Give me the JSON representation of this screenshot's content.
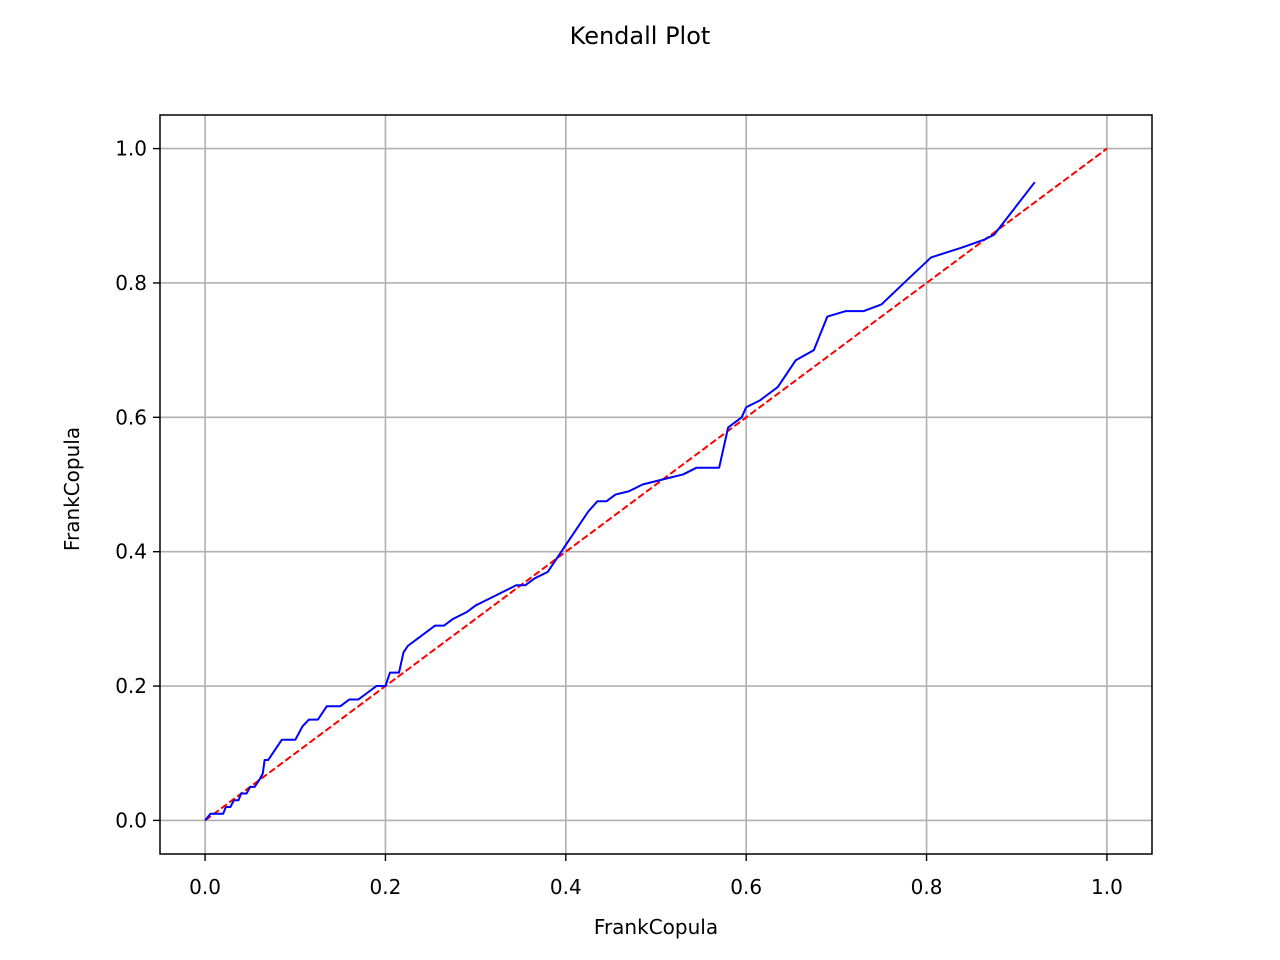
{
  "chart_data": {
    "type": "line",
    "title": "Kendall Plot",
    "xlabel": "FrankCopula",
    "ylabel": "FrankCopula",
    "xlim": [
      -0.05,
      1.05
    ],
    "ylim": [
      -0.05,
      1.05
    ],
    "grid": true,
    "x_ticks": [
      0.0,
      0.2,
      0.4,
      0.6,
      0.8,
      1.0
    ],
    "y_ticks": [
      0.0,
      0.2,
      0.4,
      0.6,
      0.8,
      1.0
    ],
    "x_tick_labels": [
      "0.0",
      "0.2",
      "0.4",
      "0.6",
      "0.8",
      "1.0"
    ],
    "y_tick_labels": [
      "0.0",
      "0.2",
      "0.4",
      "0.6",
      "0.8",
      "1.0"
    ],
    "series": [
      {
        "color": "#0000ff",
        "style": "solid",
        "x": [
          0.0,
          0.006,
          0.02,
          0.023,
          0.028,
          0.032,
          0.037,
          0.04,
          0.046,
          0.05,
          0.055,
          0.06,
          0.064,
          0.066,
          0.07,
          0.085,
          0.1,
          0.108,
          0.115,
          0.125,
          0.135,
          0.15,
          0.16,
          0.17,
          0.18,
          0.19,
          0.2,
          0.205,
          0.215,
          0.22,
          0.225,
          0.235,
          0.245,
          0.255,
          0.265,
          0.275,
          0.29,
          0.3,
          0.315,
          0.33,
          0.345,
          0.355,
          0.365,
          0.38,
          0.39,
          0.4,
          0.415,
          0.425,
          0.435,
          0.445,
          0.455,
          0.47,
          0.485,
          0.5,
          0.515,
          0.53,
          0.545,
          0.555,
          0.57,
          0.58,
          0.595,
          0.6,
          0.615,
          0.635,
          0.655,
          0.675,
          0.69,
          0.71,
          0.73,
          0.75,
          0.775,
          0.805,
          0.84,
          0.865,
          0.875,
          0.92
        ],
        "y": [
          0.0,
          0.01,
          0.01,
          0.02,
          0.02,
          0.03,
          0.03,
          0.04,
          0.04,
          0.05,
          0.05,
          0.06,
          0.07,
          0.09,
          0.09,
          0.12,
          0.12,
          0.14,
          0.15,
          0.15,
          0.17,
          0.17,
          0.18,
          0.18,
          0.19,
          0.2,
          0.2,
          0.22,
          0.22,
          0.25,
          0.26,
          0.27,
          0.28,
          0.29,
          0.29,
          0.3,
          0.31,
          0.32,
          0.33,
          0.34,
          0.35,
          0.35,
          0.36,
          0.37,
          0.39,
          0.41,
          0.44,
          0.46,
          0.475,
          0.475,
          0.485,
          0.49,
          0.5,
          0.505,
          0.51,
          0.515,
          0.525,
          0.525,
          0.525,
          0.585,
          0.6,
          0.615,
          0.625,
          0.645,
          0.685,
          0.7,
          0.75,
          0.758,
          0.758,
          0.768,
          0.8,
          0.838,
          0.853,
          0.865,
          0.872,
          0.95
        ]
      },
      {
        "color": "#ff0000",
        "style": "dashed",
        "x": [
          0.0,
          1.0
        ],
        "y": [
          0.0,
          1.0
        ]
      }
    ]
  }
}
